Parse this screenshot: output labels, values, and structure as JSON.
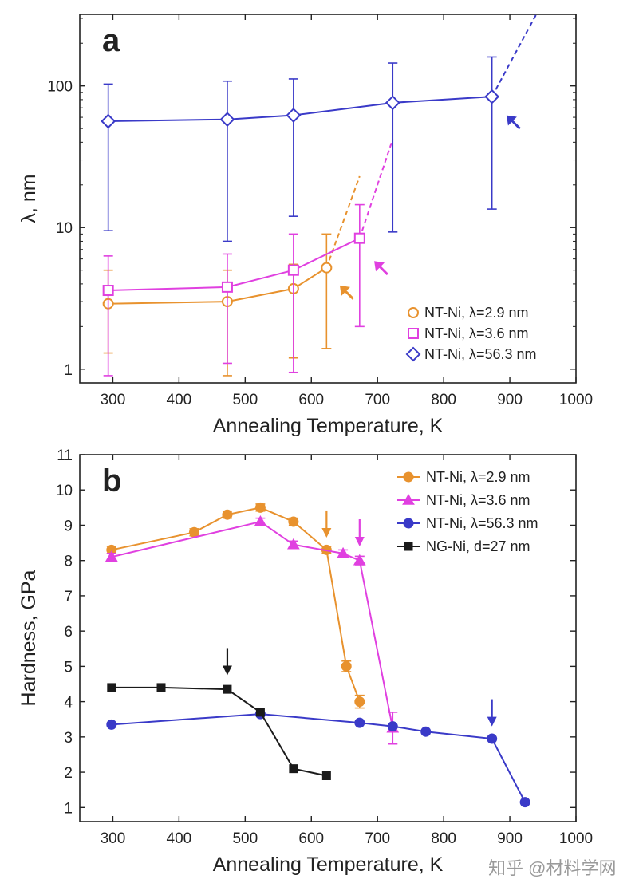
{
  "colors": {
    "orange": "#E8922E",
    "magenta": "#E040E0",
    "blue": "#3A3AC8",
    "black": "#1a1a1a"
  },
  "watermark": "知乎 @材料学网",
  "chart_data": [
    {
      "type": "line",
      "panel_label": "a",
      "xlabel": "Annealing Temperature, K",
      "ylabel": "λ, nm",
      "yscale": "log",
      "xlim": [
        250,
        1000
      ],
      "ylim": [
        0.8,
        320
      ],
      "xticks": [
        300,
        400,
        500,
        600,
        700,
        800,
        900,
        1000
      ],
      "yticks": [
        1,
        10,
        100
      ],
      "legend_position": "bottom-right",
      "series": [
        {
          "name": "NT-Ni, λ=2.9 nm",
          "color": "orange",
          "marker": "circle-open",
          "x": [
            293,
            473,
            573,
            623
          ],
          "y": [
            2.9,
            3.0,
            3.7,
            5.2
          ],
          "err_low": [
            1.3,
            0.9,
            1.2,
            1.4
          ],
          "err_high": [
            5.0,
            5.0,
            5.5,
            9.0
          ],
          "extrapolation": {
            "x": [
              623,
              673
            ],
            "y": [
              5.2,
              23
            ]
          },
          "arrow_at": {
            "x": 643,
            "y": 3.9
          }
        },
        {
          "name": "NT-Ni, λ=3.6 nm",
          "color": "magenta",
          "marker": "square-open",
          "x": [
            293,
            473,
            573,
            673
          ],
          "y": [
            3.6,
            3.8,
            5.0,
            8.4
          ],
          "err_low": [
            0.9,
            1.1,
            0.95,
            2.0
          ],
          "err_high": [
            6.3,
            6.5,
            9.0,
            14.5
          ],
          "extrapolation": {
            "x": [
              673,
              723
            ],
            "y": [
              8.4,
              42
            ]
          },
          "arrow_at": {
            "x": 695,
            "y": 5.8
          }
        },
        {
          "name": "NT-Ni, λ=56.3 nm",
          "color": "blue",
          "marker": "diamond-open",
          "x": [
            293,
            473,
            573,
            723,
            873
          ],
          "y": [
            56.3,
            58,
            62,
            76,
            84
          ],
          "err_low": [
            9.5,
            8.0,
            12,
            9.3,
            13.5
          ],
          "err_high": [
            103,
            108,
            112,
            145,
            160
          ],
          "extrapolation": {
            "x": [
              873,
              940
            ],
            "y": [
              84,
              320
            ]
          },
          "arrow_at": {
            "x": 895,
            "y": 62
          }
        }
      ]
    },
    {
      "type": "line",
      "panel_label": "b",
      "xlabel": "Annealing Temperature, K",
      "ylabel": "Hardness, GPa",
      "xlim": [
        250,
        1000
      ],
      "ylim": [
        0.6,
        11
      ],
      "xticks": [
        300,
        400,
        500,
        600,
        700,
        800,
        900,
        1000
      ],
      "yticks": [
        1,
        2,
        3,
        4,
        5,
        6,
        7,
        8,
        9,
        10,
        11
      ],
      "legend_position": "top-right",
      "series": [
        {
          "name": "NT-Ni, λ=2.9 nm",
          "color": "orange",
          "marker": "circle-filled",
          "x": [
            298,
            423,
            473,
            523,
            573,
            623,
            653,
            673
          ],
          "y": [
            8.3,
            8.8,
            9.3,
            9.5,
            9.1,
            8.3,
            5.0,
            4.0
          ],
          "err": [
            0.1,
            0.1,
            0.1,
            0.1,
            0.1,
            0.1,
            0.15,
            0.18
          ],
          "arrow_at": {
            "x": 623,
            "y": 8.65
          }
        },
        {
          "name": "NT-Ni, λ=3.6 nm",
          "color": "magenta",
          "marker": "triangle-filled",
          "x": [
            298,
            523,
            573,
            648,
            673,
            723
          ],
          "y": [
            8.1,
            9.1,
            8.45,
            8.2,
            8.0,
            3.25
          ],
          "err": [
            0.1,
            0.1,
            0.1,
            0.1,
            0.12,
            0.45
          ],
          "arrow_at": {
            "x": 673,
            "y": 8.4
          }
        },
        {
          "name": "NT-Ni, λ=56.3 nm",
          "color": "blue",
          "marker": "circle-filled",
          "x": [
            298,
            523,
            673,
            723,
            773,
            873,
            923
          ],
          "y": [
            3.35,
            3.65,
            3.4,
            3.3,
            3.15,
            2.95,
            1.15
          ],
          "arrow_at": {
            "x": 873,
            "y": 3.3
          }
        },
        {
          "name": "NG-Ni, d=27 nm",
          "color": "black",
          "marker": "square-filled",
          "x": [
            298,
            373,
            473,
            523,
            573,
            623
          ],
          "y": [
            4.4,
            4.4,
            4.35,
            3.7,
            2.1,
            1.9
          ],
          "arrow_at": {
            "x": 473,
            "y": 4.75
          }
        }
      ]
    }
  ]
}
